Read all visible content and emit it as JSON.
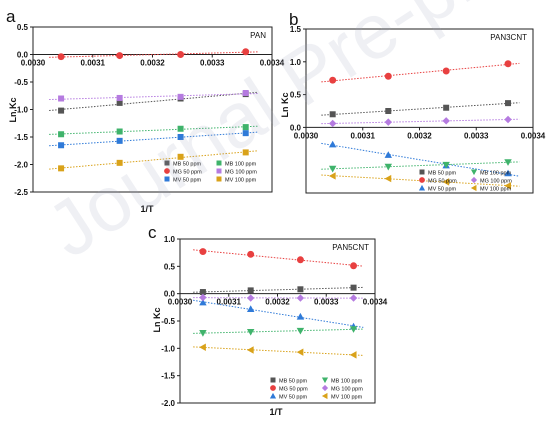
{
  "watermark": "Journal Pre-proof",
  "chart_data": [
    {
      "panel_label": "a",
      "type": "scatter",
      "inset_label": "PAN",
      "xlabel": "1/T",
      "ylabel": "Ln Kc",
      "xlim": [
        0.003,
        0.0034
      ],
      "ylim": [
        -2.5,
        0.5
      ],
      "x_ticks": [
        "0.0030",
        "0.0031",
        "0.0032",
        "0.0033",
        "0.0034"
      ],
      "y_ticks": [
        "0.5",
        "0.0",
        "-0.5",
        "-1.0",
        "-1.5",
        "-2.0",
        "-2.5"
      ],
      "y_tick_values": [
        0.5,
        0.0,
        -0.5,
        -1.0,
        -1.5,
        -2.0,
        -2.5
      ],
      "x_axis_at_y": 0.0,
      "grid": false,
      "legend_position": "bottom-right",
      "x": [
        0.003047,
        0.003145,
        0.003247,
        0.003356
      ],
      "series": [
        {
          "name": "MB 50 ppm",
          "marker": "square",
          "color": "#555555",
          "values": [
            -1.02,
            -0.88,
            -0.8,
            -0.72
          ]
        },
        {
          "name": "MG 50 ppm",
          "marker": "circle",
          "color": "#e84040",
          "values": [
            -0.04,
            -0.02,
            0.0,
            0.05
          ]
        },
        {
          "name": "MV 50 ppm",
          "marker": "square",
          "color": "#2f7ad8",
          "values": [
            -1.65,
            -1.57,
            -1.5,
            -1.43
          ]
        },
        {
          "name": "MB 100 ppm",
          "marker": "square",
          "color": "#3fb36b",
          "values": [
            -1.45,
            -1.4,
            -1.35,
            -1.32
          ]
        },
        {
          "name": "MG 100 ppm",
          "marker": "square",
          "color": "#b57be0",
          "values": [
            -0.8,
            -0.79,
            -0.77,
            -0.7
          ]
        },
        {
          "name": "MV 100 ppm",
          "marker": "square",
          "color": "#d9a21a",
          "values": [
            -2.07,
            -1.97,
            -1.86,
            -1.78
          ]
        }
      ]
    },
    {
      "panel_label": "b",
      "type": "scatter",
      "inset_label": "PAN3CNT",
      "xlabel": "1/T",
      "ylabel": "Ln Kc",
      "xlim": [
        0.003,
        0.0034
      ],
      "ylim": [
        -1.0,
        1.5
      ],
      "x_ticks": [
        "0.0030",
        "0.0031",
        "0.0032",
        "0.0033",
        "0.0034"
      ],
      "y_ticks": [
        "1.5",
        "1.0",
        "0.5",
        "0.0"
      ],
      "y_tick_values": [
        1.5,
        1.0,
        0.5,
        0.0
      ],
      "x_axis_at_y": 0.0,
      "grid": false,
      "legend_position": "bottom-right",
      "x": [
        0.003047,
        0.003145,
        0.003247,
        0.003356
      ],
      "series": [
        {
          "name": "MB 50 ppm",
          "marker": "square",
          "color": "#555555",
          "values": [
            0.2,
            0.25,
            0.3,
            0.37
          ]
        },
        {
          "name": "MG 50 ppm",
          "marker": "circle",
          "color": "#e84040",
          "values": [
            0.72,
            0.78,
            0.86,
            0.97
          ]
        },
        {
          "name": "MV 50 ppm",
          "marker": "triangle-up",
          "color": "#2f7ad8",
          "values": [
            -0.26,
            -0.42,
            -0.58,
            -0.7
          ]
        },
        {
          "name": "MB 100 ppm",
          "marker": "triangle-down",
          "color": "#3fb36b",
          "values": [
            -0.63,
            -0.6,
            -0.57,
            -0.53
          ]
        },
        {
          "name": "MG 100 ppm",
          "marker": "diamond",
          "color": "#b57be0",
          "values": [
            0.06,
            0.08,
            0.1,
            0.12
          ]
        },
        {
          "name": "MV 100 ppm",
          "marker": "triangle-left",
          "color": "#d9a21a",
          "values": [
            -0.74,
            -0.78,
            -0.83,
            -0.89
          ]
        }
      ]
    },
    {
      "panel_label": "c",
      "type": "scatter",
      "inset_label": "PAN5CNT",
      "xlabel": "1/T",
      "ylabel": "Ln Kc",
      "xlim": [
        0.003,
        0.0034
      ],
      "ylim": [
        -2.0,
        1.0
      ],
      "x_ticks": [
        "0.0030",
        "0.0031",
        "0.0032",
        "0.0033",
        "0.0034"
      ],
      "y_ticks": [
        "1.0",
        "0.5",
        "0.0",
        "-0.5",
        "-1.0",
        "-1.5",
        "-2.0"
      ],
      "y_tick_values": [
        1.0,
        0.5,
        0.0,
        -0.5,
        -1.0,
        -1.5,
        -2.0
      ],
      "x_axis_at_y": 0.0,
      "grid": false,
      "legend_position": "bottom-right",
      "x": [
        0.003047,
        0.003145,
        0.003247,
        0.003356
      ],
      "series": [
        {
          "name": "MB 50 ppm",
          "marker": "square",
          "color": "#555555",
          "values": [
            0.03,
            0.06,
            0.08,
            0.11
          ]
        },
        {
          "name": "MG 50 ppm",
          "marker": "circle",
          "color": "#e84040",
          "values": [
            0.77,
            0.72,
            0.62,
            0.51
          ]
        },
        {
          "name": "MV 50 ppm",
          "marker": "triangle-up",
          "color": "#2f7ad8",
          "values": [
            -0.16,
            -0.28,
            -0.42,
            -0.6
          ]
        },
        {
          "name": "MB 100 ppm",
          "marker": "triangle-down",
          "color": "#3fb36b",
          "values": [
            -0.72,
            -0.7,
            -0.68,
            -0.65
          ]
        },
        {
          "name": "MG 100 ppm",
          "marker": "diamond",
          "color": "#b57be0",
          "values": [
            -0.07,
            -0.08,
            -0.08,
            -0.08
          ]
        },
        {
          "name": "MV 100 ppm",
          "marker": "triangle-left",
          "color": "#d9a21a",
          "values": [
            -0.98,
            -1.03,
            -1.07,
            -1.12
          ]
        }
      ]
    }
  ]
}
